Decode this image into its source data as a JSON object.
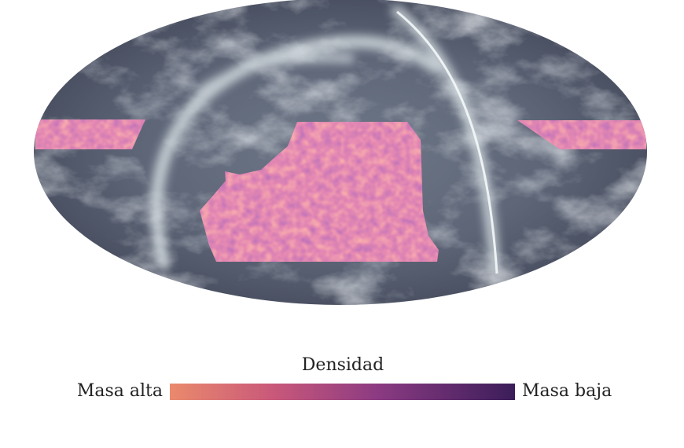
{
  "colorbar": {
    "title": "Densidad",
    "left_label": "Masa alta",
    "right_label": "Masa baja"
  }
}
